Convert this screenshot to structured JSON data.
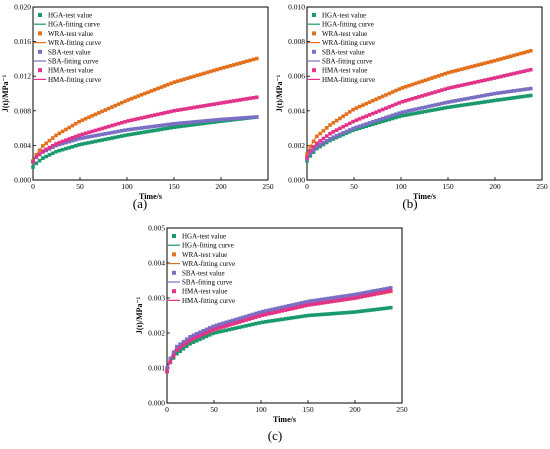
{
  "legend_labels": [
    {
      "test": "HGA-test value",
      "fit": "HGA-fitting curve"
    },
    {
      "test": "WRA-test value",
      "fit": "WRA-fitting curve"
    },
    {
      "test": "SBA-test value",
      "fit": "SBA-fitting curve"
    },
    {
      "test": "HMA-test value",
      "fit": "HMA-fitting curve"
    }
  ],
  "chart_data": [
    {
      "type": "scatter",
      "panel_label": "(a)",
      "xlabel": "Time/s",
      "ylabel": "J(t)/MPa⁻¹",
      "xlim": [
        0,
        250
      ],
      "ylim": [
        0,
        0.02
      ],
      "x_ticks": [
        "0",
        "50",
        "100",
        "150",
        "200",
        "250"
      ],
      "y_ticks": [
        "0.000",
        "0.004",
        "0.008",
        "0.012",
        "0.016",
        "0.020"
      ],
      "legend_position": "top-left",
      "series": [
        {
          "name": "HGA",
          "color": "#1a9a6c",
          "values_at": {
            "0": 0.0015,
            "2": 0.0018,
            "10": 0.0025,
            "25": 0.0033,
            "50": 0.0041,
            "100": 0.0052,
            "150": 0.0061,
            "200": 0.0068,
            "240": 0.0073
          }
        },
        {
          "name": "WRA",
          "color": "#e2701d",
          "values_at": {
            "0": 0.0022,
            "2": 0.0027,
            "10": 0.0039,
            "25": 0.0052,
            "50": 0.0068,
            "100": 0.0092,
            "150": 0.0113,
            "200": 0.0129,
            "240": 0.0141
          }
        },
        {
          "name": "SBA",
          "color": "#7a6fc2",
          "values_at": {
            "0": 0.0021,
            "2": 0.0025,
            "10": 0.0032,
            "25": 0.004,
            "50": 0.0048,
            "100": 0.0058,
            "150": 0.0065,
            "200": 0.007,
            "240": 0.0073
          }
        },
        {
          "name": "HMA",
          "color": "#e3328a",
          "values_at": {
            "0": 0.0021,
            "2": 0.0025,
            "10": 0.0033,
            "25": 0.0042,
            "50": 0.0052,
            "100": 0.0068,
            "150": 0.008,
            "200": 0.0089,
            "240": 0.0096
          }
        }
      ]
    },
    {
      "type": "scatter",
      "panel_label": "(b)",
      "xlabel": "Time/s",
      "ylabel": "J(t)/MPa⁻¹",
      "xlim": [
        0,
        250
      ],
      "ylim": [
        0,
        0.01
      ],
      "x_ticks": [
        "0",
        "50",
        "100",
        "150",
        "200",
        "250"
      ],
      "y_ticks": [
        "0.000",
        "0.002",
        "0.004",
        "0.006",
        "0.008",
        "0.010"
      ],
      "legend_position": "top-left",
      "series": [
        {
          "name": "HGA",
          "color": "#1a9a6c",
          "values_at": {
            "0": 0.0011,
            "2": 0.0013,
            "10": 0.0018,
            "25": 0.0023,
            "50": 0.0029,
            "100": 0.0037,
            "150": 0.0042,
            "200": 0.0046,
            "240": 0.0049
          }
        },
        {
          "name": "WRA",
          "color": "#e2701d",
          "values_at": {
            "0": 0.0015,
            "2": 0.0018,
            "10": 0.0025,
            "25": 0.0032,
            "50": 0.0041,
            "100": 0.0053,
            "150": 0.0062,
            "200": 0.0069,
            "240": 0.0075
          }
        },
        {
          "name": "SBA",
          "color": "#7a6fc2",
          "values_at": {
            "0": 0.0012,
            "2": 0.0014,
            "10": 0.0019,
            "25": 0.0024,
            "50": 0.003,
            "100": 0.0039,
            "150": 0.0045,
            "200": 0.005,
            "240": 0.0053
          }
        },
        {
          "name": "HMA",
          "color": "#e3328a",
          "values_at": {
            "0": 0.0013,
            "2": 0.0016,
            "10": 0.0021,
            "25": 0.0027,
            "50": 0.0034,
            "100": 0.0045,
            "150": 0.0053,
            "200": 0.0059,
            "240": 0.0064
          }
        }
      ]
    },
    {
      "type": "scatter",
      "panel_label": "(c)",
      "xlabel": "Time/s",
      "ylabel": "J(t)/MPa⁻¹",
      "xlim": [
        0,
        250
      ],
      "ylim": [
        0,
        0.005
      ],
      "x_ticks": [
        "0",
        "50",
        "100",
        "150",
        "200",
        "250"
      ],
      "y_ticks": [
        "0.000",
        "0.001",
        "0.002",
        "0.003",
        "0.004",
        "0.005"
      ],
      "legend_position": "top-left",
      "series": [
        {
          "name": "HGA",
          "color": "#1a9a6c",
          "values_at": {
            "0": 0.0009,
            "2": 0.0011,
            "10": 0.0014,
            "25": 0.0017,
            "50": 0.002,
            "100": 0.0023,
            "150": 0.0025,
            "200": 0.0026,
            "240": 0.00273
          }
        },
        {
          "name": "WRA",
          "color": "#e2701d",
          "values_at": {
            "0": 0.0009,
            "2": 0.0011,
            "10": 0.0015,
            "25": 0.0018,
            "50": 0.0021,
            "100": 0.0025,
            "150": 0.0028,
            "200": 0.003,
            "240": 0.0032
          }
        },
        {
          "name": "SBA",
          "color": "#7a6fc2",
          "values_at": {
            "0": 0.001,
            "2": 0.0012,
            "10": 0.0016,
            "25": 0.0019,
            "50": 0.0022,
            "100": 0.0026,
            "150": 0.0029,
            "200": 0.0031,
            "240": 0.0033
          }
        },
        {
          "name": "HMA",
          "color": "#e3328a",
          "values_at": {
            "0": 0.0009,
            "2": 0.0011,
            "10": 0.0015,
            "25": 0.0018,
            "50": 0.0021,
            "100": 0.0025,
            "150": 0.0028,
            "200": 0.003,
            "240": 0.00322
          }
        }
      ]
    }
  ]
}
